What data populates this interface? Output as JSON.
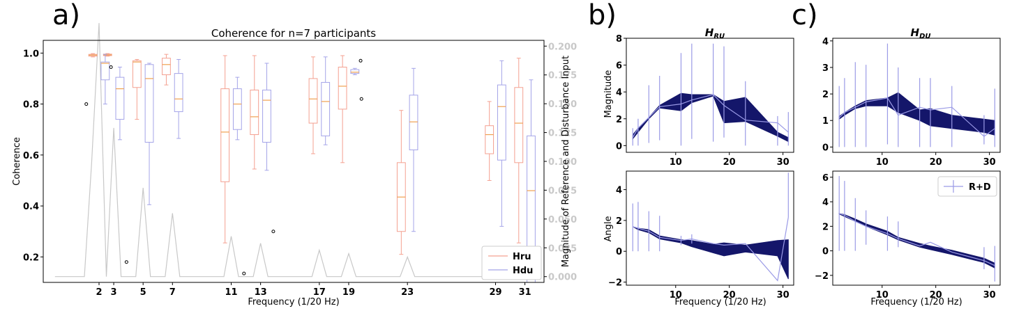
{
  "panels": {
    "a": "a)",
    "b": "b)",
    "c": "c)"
  },
  "colors": {
    "hru": "#f4a090",
    "hdu": "#a4a4e8",
    "median": "#f0a050",
    "magnitude_trace": "#c8c8c8",
    "band": "#14166a",
    "rd_line": "#9a9ae6"
  },
  "chart_data": [
    {
      "type": "box",
      "title": "Coherence for n=7 participants",
      "xlabel": "Frequency (1/20 Hz)",
      "ylabel": "Coherence",
      "ylabel_right": "Magnitude of Reference and Disturbance Input",
      "ylim": [
        0.1,
        1.05
      ],
      "ylim_right": [
        -0.005,
        0.205
      ],
      "yticks": [
        0.2,
        0.4,
        0.6,
        0.8,
        1.0
      ],
      "ytick_labels": [
        "0.2",
        "0.4",
        "0.6",
        "0.8",
        "1.0"
      ],
      "yticks_right": [
        0.0,
        0.025,
        0.05,
        0.075,
        0.1,
        0.125,
        0.15,
        0.175,
        0.2
      ],
      "ytick_labels_right": [
        "0.000",
        "0.025",
        "0.050",
        "0.075",
        "0.100",
        "0.125",
        "0.150",
        "0.175",
        "0.200"
      ],
      "xlim": [
        -1.8,
        32.3
      ],
      "xticks": [
        2,
        3,
        5,
        7,
        11,
        13,
        17,
        19,
        23,
        29,
        31
      ],
      "xtick_labels": [
        "2",
        "3",
        "5",
        "7",
        "11",
        "13",
        "17",
        "19",
        "23",
        "29",
        "31"
      ],
      "legend": {
        "position": "bottom-right",
        "entries": [
          "Hru",
          "Hdu"
        ]
      },
      "series": [
        {
          "name": "Hru",
          "boxes": [
            {
              "freq": 2,
              "whislo": 0.985,
              "q1": 0.988,
              "med": 0.992,
              "q3": 0.995,
              "whishi": 0.998,
              "fliers": [
                0.8
              ]
            },
            {
              "freq": 3,
              "whislo": 0.988,
              "q1": 0.99,
              "med": 0.993,
              "q3": 0.996,
              "whishi": 0.998,
              "fliers": []
            },
            {
              "freq": 5,
              "whislo": 0.74,
              "q1": 0.865,
              "med": 0.965,
              "q3": 0.97,
              "whishi": 0.975,
              "fliers": []
            },
            {
              "freq": 7,
              "whislo": 0.875,
              "q1": 0.915,
              "med": 0.955,
              "q3": 0.98,
              "whishi": 0.995,
              "fliers": []
            },
            {
              "freq": 11,
              "whislo": 0.255,
              "q1": 0.495,
              "med": 0.69,
              "q3": 0.86,
              "whishi": 0.99,
              "fliers": []
            },
            {
              "freq": 13,
              "whislo": 0.545,
              "q1": 0.68,
              "med": 0.75,
              "q3": 0.855,
              "whishi": 0.99,
              "fliers": []
            },
            {
              "freq": 17,
              "whislo": 0.605,
              "q1": 0.725,
              "med": 0.82,
              "q3": 0.9,
              "whishi": 0.985,
              "fliers": []
            },
            {
              "freq": 19,
              "whislo": 0.57,
              "q1": 0.78,
              "med": 0.87,
              "q3": 0.945,
              "whishi": 0.99,
              "fliers": []
            },
            {
              "freq": 23,
              "whislo": 0.21,
              "q1": 0.3,
              "med": 0.435,
              "q3": 0.57,
              "whishi": 0.775,
              "fliers": []
            },
            {
              "freq": 29,
              "whislo": 0.5,
              "q1": 0.605,
              "med": 0.68,
              "q3": 0.715,
              "whishi": 0.81,
              "fliers": []
            },
            {
              "freq": 31,
              "whislo": 0.255,
              "q1": 0.57,
              "med": 0.725,
              "q3": 0.865,
              "whishi": 0.98,
              "fliers": []
            }
          ]
        },
        {
          "name": "Hdu",
          "boxes": [
            {
              "freq": 2,
              "whislo": 0.8,
              "q1": 0.895,
              "med": 0.96,
              "q3": 0.965,
              "whishi": 0.995,
              "fliers": [
                0.945
              ]
            },
            {
              "freq": 3,
              "whislo": 0.66,
              "q1": 0.74,
              "med": 0.86,
              "q3": 0.905,
              "whishi": 0.945,
              "fliers": [
                0.18
              ]
            },
            {
              "freq": 5,
              "whislo": 0.405,
              "q1": 0.65,
              "med": 0.9,
              "q3": 0.955,
              "whishi": 0.96,
              "fliers": []
            },
            {
              "freq": 7,
              "whislo": 0.665,
              "q1": 0.77,
              "med": 0.82,
              "q3": 0.92,
              "whishi": 0.975,
              "fliers": []
            },
            {
              "freq": 11,
              "whislo": 0.66,
              "q1": 0.7,
              "med": 0.8,
              "q3": 0.86,
              "whishi": 0.905,
              "fliers": [
                0.135
              ]
            },
            {
              "freq": 13,
              "whislo": 0.54,
              "q1": 0.65,
              "med": 0.815,
              "q3": 0.855,
              "whishi": 0.96,
              "fliers": [
                0.3
              ]
            },
            {
              "freq": 17,
              "whislo": 0.64,
              "q1": 0.675,
              "med": 0.81,
              "q3": 0.885,
              "whishi": 0.985,
              "fliers": []
            },
            {
              "freq": 19,
              "whislo": 0.915,
              "q1": 0.92,
              "med": 0.925,
              "q3": 0.935,
              "whishi": 0.94,
              "fliers": [
                0.97,
                0.82
              ]
            },
            {
              "freq": 23,
              "whislo": 0.3,
              "q1": 0.62,
              "med": 0.73,
              "q3": 0.835,
              "whishi": 0.94,
              "fliers": []
            },
            {
              "freq": 29,
              "whislo": 0.32,
              "q1": 0.58,
              "med": 0.79,
              "q3": 0.875,
              "whishi": 0.97,
              "fliers": []
            },
            {
              "freq": 31,
              "whislo": 0.1,
              "q1": 0.1,
              "med": 0.46,
              "q3": 0.675,
              "whishi": 0.895,
              "fliers": []
            }
          ]
        }
      ],
      "magnitude_trace": {
        "x": [
          -1,
          0,
          1,
          1.5,
          2,
          2.5,
          3,
          3.5,
          4,
          4.5,
          5,
          5.5,
          6,
          6.5,
          7,
          7.5,
          8,
          10.5,
          11,
          11.5,
          12.5,
          13,
          13.5,
          16.5,
          17,
          17.5,
          18.5,
          19,
          19.5,
          22.5,
          23,
          23.5,
          31
        ],
        "y": [
          0,
          0,
          0,
          0.1,
          0.22,
          0.0,
          0.129,
          0.0,
          0,
          0,
          0.077,
          0,
          0,
          0,
          0.055,
          0,
          0,
          0,
          0.035,
          0,
          0,
          0.029,
          0,
          0,
          0.023,
          0,
          0,
          0.02,
          0,
          0,
          0.017,
          0,
          0
        ]
      }
    },
    {
      "type": "band_errorbar",
      "title": "H_RU",
      "ylabel": "Magnitude",
      "xlim": [
        0.8,
        32
      ],
      "ylim": [
        -0.5,
        8
      ],
      "xticks": [
        10,
        20,
        30
      ],
      "xtick_labels": [
        "10",
        "20",
        "30"
      ],
      "yticks": [
        0,
        2,
        4,
        6,
        8
      ],
      "ytick_labels": [
        "0",
        "2",
        "4",
        "6",
        "8"
      ],
      "x": [
        2,
        3,
        5,
        7,
        11,
        13,
        17,
        19,
        23,
        29,
        31
      ],
      "band_upper": [
        0.8,
        1.3,
        2.1,
        3.0,
        3.9,
        3.8,
        3.8,
        3.3,
        3.6,
        1.0,
        0.6
      ],
      "band_lower": [
        0.5,
        1.0,
        2.0,
        2.8,
        2.6,
        3.2,
        3.7,
        1.7,
        1.8,
        0.7,
        0.3
      ],
      "rd_mean": [
        0.6,
        1.3,
        2.1,
        2.9,
        3.1,
        3.4,
        3.8,
        3.0,
        1.9,
        1.7,
        1.0
      ],
      "rd_err_lo": [
        0.0,
        0.0,
        0.2,
        0.4,
        0.0,
        0.5,
        0.3,
        0.6,
        0.0,
        0.0,
        0.0
      ],
      "rd_err_hi": [
        1.3,
        2.0,
        4.5,
        5.2,
        6.9,
        7.6,
        7.6,
        7.4,
        4.8,
        2.2,
        2.5
      ]
    },
    {
      "type": "band_errorbar",
      "title": "H_DU",
      "xlim": [
        0.8,
        32
      ],
      "ylim": [
        -0.2,
        4.1
      ],
      "xticks": [
        10,
        20,
        30
      ],
      "xtick_labels": [
        "10",
        "20",
        "30"
      ],
      "yticks": [
        0,
        1,
        2,
        3,
        4
      ],
      "ytick_labels": [
        "0",
        "1",
        "2",
        "3",
        "4"
      ],
      "x": [
        2,
        3,
        5,
        7,
        11,
        13,
        17,
        19,
        23,
        29,
        31
      ],
      "band_upper": [
        1.15,
        1.3,
        1.55,
        1.75,
        1.85,
        2.05,
        1.4,
        1.45,
        1.2,
        1.05,
        1.0
      ],
      "band_lower": [
        1.05,
        1.2,
        1.45,
        1.55,
        1.55,
        1.3,
        1.0,
        0.8,
        0.7,
        0.55,
        0.45
      ],
      "rd_mean": [
        1.1,
        1.3,
        1.5,
        1.7,
        1.85,
        1.2,
        1.5,
        1.4,
        1.5,
        0.4,
        0.7
      ],
      "rd_err_lo": [
        0.0,
        0.0,
        0.0,
        0.0,
        0.1,
        0.0,
        0.0,
        0.0,
        0.0,
        0.1,
        0.0
      ],
      "rd_err_hi": [
        2.3,
        2.6,
        3.2,
        3.1,
        3.9,
        3.0,
        2.6,
        2.6,
        2.3,
        1.2,
        2.2
      ]
    },
    {
      "type": "band_errorbar",
      "xlabel": "Frequency (1/20 Hz)",
      "ylabel": "Angle",
      "xlim": [
        0.8,
        32
      ],
      "ylim": [
        -2.2,
        5.2
      ],
      "xticks": [
        10,
        20,
        30
      ],
      "xtick_labels": [
        "10",
        "20",
        "30"
      ],
      "yticks": [
        -2,
        0,
        2,
        4
      ],
      "ytick_labels": [
        "−2",
        "0",
        "2",
        "4"
      ],
      "x": [
        2,
        3,
        5,
        7,
        11,
        13,
        17,
        19,
        23,
        29,
        31
      ],
      "band_upper": [
        1.6,
        1.5,
        1.4,
        1.0,
        0.75,
        0.7,
        0.45,
        0.55,
        0.4,
        0.7,
        0.75
      ],
      "band_lower": [
        1.6,
        1.4,
        1.2,
        0.8,
        0.55,
        0.3,
        -0.1,
        -0.3,
        -0.05,
        -0.3,
        -1.8
      ],
      "rd_mean": [
        1.6,
        1.5,
        1.3,
        0.9,
        0.7,
        0.8,
        0.5,
        0.4,
        0.5,
        -1.9,
        2.2
      ],
      "rd_err_lo": [
        0.0,
        0.0,
        0.0,
        0.0,
        0.4,
        0.5,
        null,
        null,
        null,
        null,
        null
      ],
      "rd_err_hi": [
        3.1,
        3.2,
        2.6,
        2.3,
        1.0,
        1.1,
        null,
        null,
        null,
        null,
        5.1
      ]
    },
    {
      "type": "band_errorbar",
      "xlabel": "Frequency (1/20 Hz)",
      "xlim": [
        0.8,
        32
      ],
      "ylim": [
        -2.8,
        6.5
      ],
      "xticks": [
        10,
        20,
        30
      ],
      "xtick_labels": [
        "10",
        "20",
        "30"
      ],
      "yticks": [
        -2,
        0,
        2,
        4,
        6
      ],
      "ytick_labels": [
        "−2",
        "0",
        "2",
        "4",
        "6"
      ],
      "x": [
        2,
        3,
        5,
        7,
        11,
        13,
        17,
        19,
        23,
        29,
        31
      ],
      "band_upper": [
        3.05,
        2.95,
        2.6,
        2.2,
        1.6,
        1.1,
        0.6,
        0.4,
        0.05,
        -0.6,
        -1.0
      ],
      "band_lower": [
        3.0,
        2.8,
        2.4,
        2.0,
        1.3,
        0.9,
        0.3,
        0.1,
        -0.3,
        -0.95,
        -1.4
      ],
      "rd_mean": [
        3.05,
        2.9,
        2.4,
        2.0,
        1.4,
        1.0,
        0.4,
        0.7,
        -0.1,
        -0.8,
        -1.2
      ],
      "rd_err_lo": [
        0.0,
        0.0,
        0.0,
        0.5,
        0.0,
        0.3,
        null,
        null,
        null,
        -1.5,
        -2.5
      ],
      "rd_err_hi": [
        6.1,
        5.7,
        4.3,
        3.3,
        2.8,
        2.4,
        null,
        null,
        null,
        0.3,
        0.4
      ],
      "legend": {
        "position": "top-right",
        "entries": [
          "R+D"
        ]
      }
    }
  ]
}
